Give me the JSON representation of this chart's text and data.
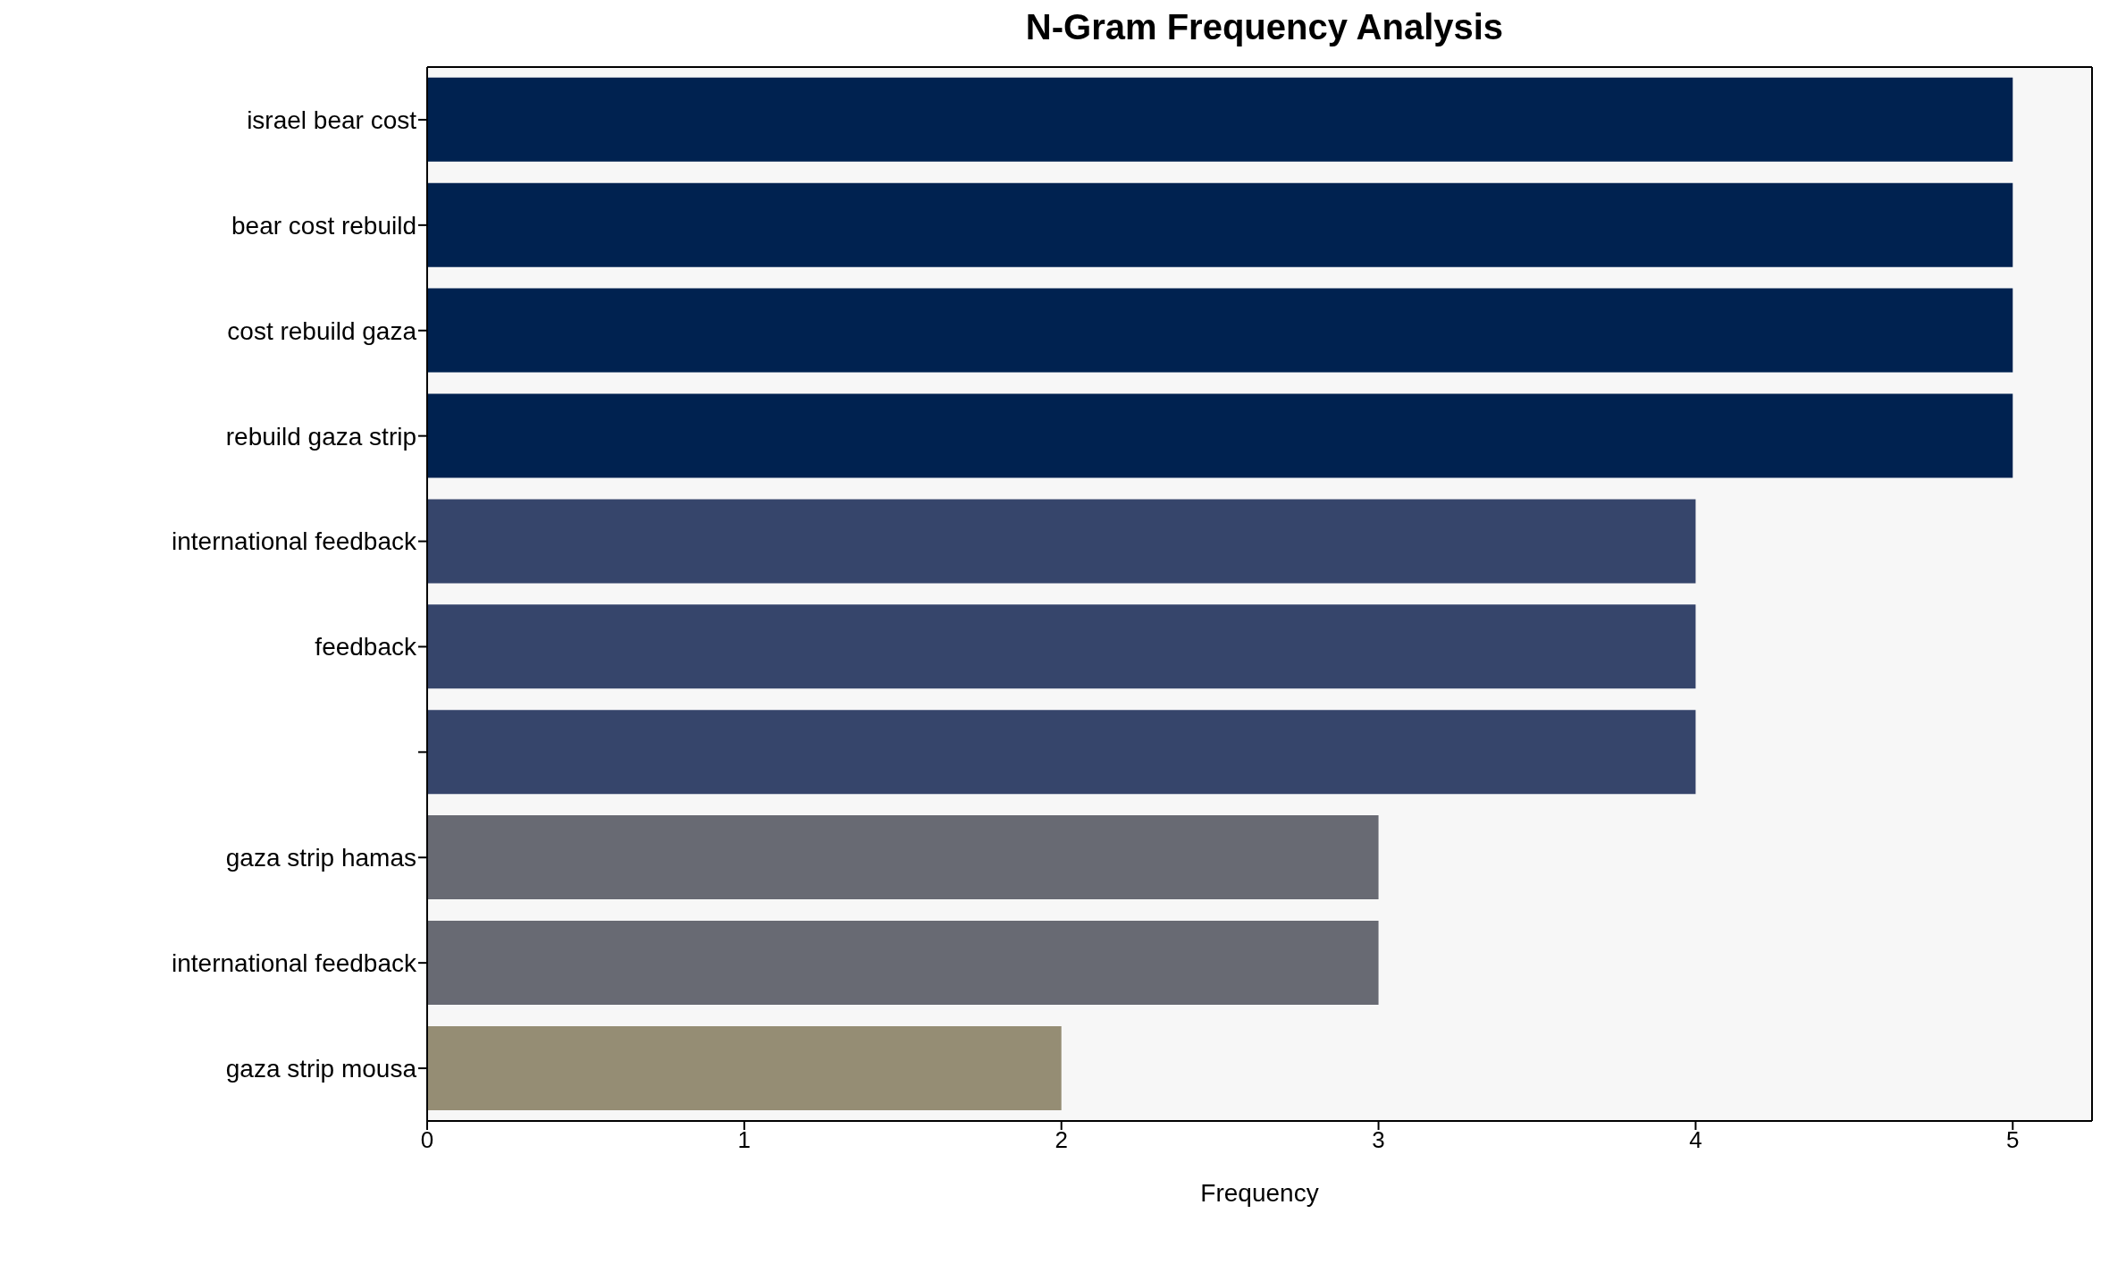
{
  "chart_data": {
    "type": "bar",
    "orientation": "horizontal",
    "title": "N-Gram Frequency Analysis",
    "xlabel": "Frequency",
    "categories": [
      "israel bear cost",
      "bear cost rebuild",
      "cost rebuild gaza",
      "rebuild gaza strip",
      "international feedback",
      "feedback",
      null,
      "gaza strip hamas",
      "international feedback",
      "gaza strip mousa"
    ],
    "values": [
      5,
      5,
      5,
      5,
      4,
      4,
      4,
      3,
      3,
      2
    ],
    "colors": [
      "#002250",
      "#002250",
      "#002250",
      "#002250",
      "#36456b",
      "#36456b",
      "#36456b",
      "#686a73",
      "#686a73",
      "#958d74"
    ],
    "xlim": [
      0,
      5.25
    ],
    "xticks": [
      0,
      1,
      2,
      3,
      4,
      5
    ],
    "grid": false
  }
}
